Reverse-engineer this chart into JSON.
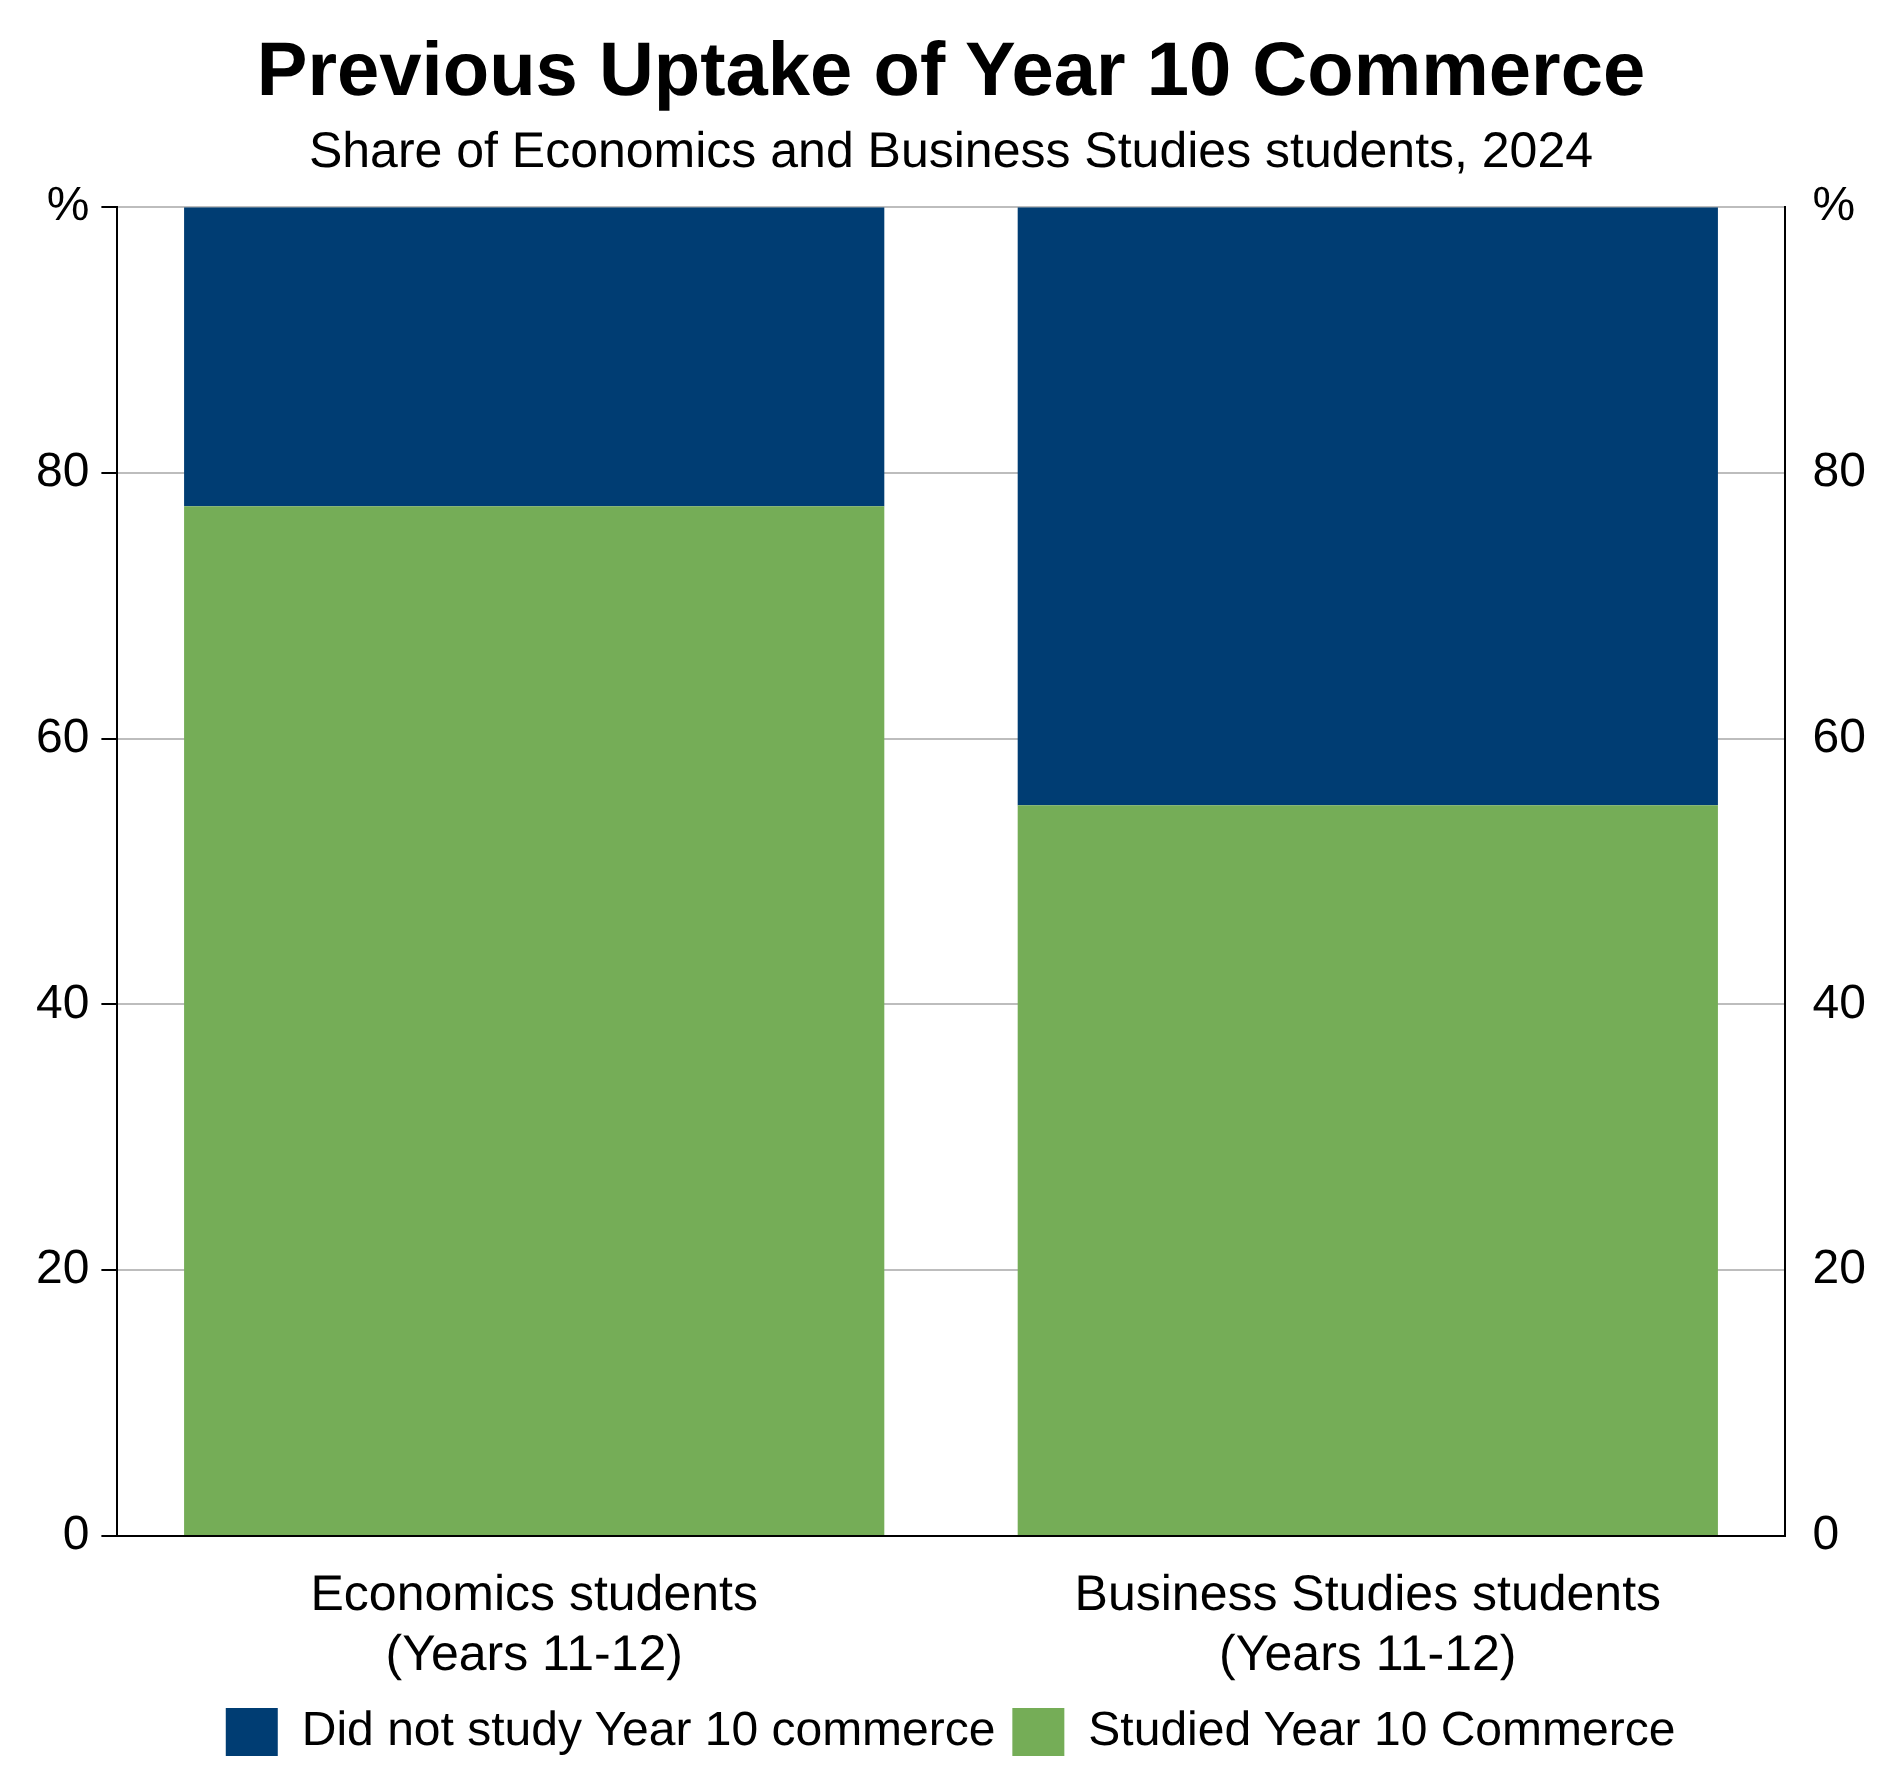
{
  "chart_data": {
    "type": "bar",
    "title": "Previous Uptake of Year 10 Commerce",
    "subtitle": "Share of Economics and Business Studies students, 2024",
    "categories": [
      "Economics students\n(Years 11-12)",
      "Business Studies students\n(Years 11-12)"
    ],
    "stacked": true,
    "series": [
      {
        "name": "Studied Year 10 Commerce",
        "color": "#75ad57",
        "values": [
          77.5,
          55
        ]
      },
      {
        "name": "Did not study Year 10 commerce",
        "color": "#003d73",
        "values": [
          22.5,
          45
        ]
      }
    ],
    "ylim": [
      0,
      100
    ],
    "yticks": [
      0,
      20,
      40,
      60,
      80,
      {
        "value": 100,
        "label": "%"
      }
    ],
    "y2lim": [
      0,
      100
    ],
    "y2ticks": [
      0,
      20,
      40,
      60,
      80,
      {
        "value": 100,
        "label": "%"
      }
    ],
    "grid": "y",
    "legend": "bottom"
  }
}
